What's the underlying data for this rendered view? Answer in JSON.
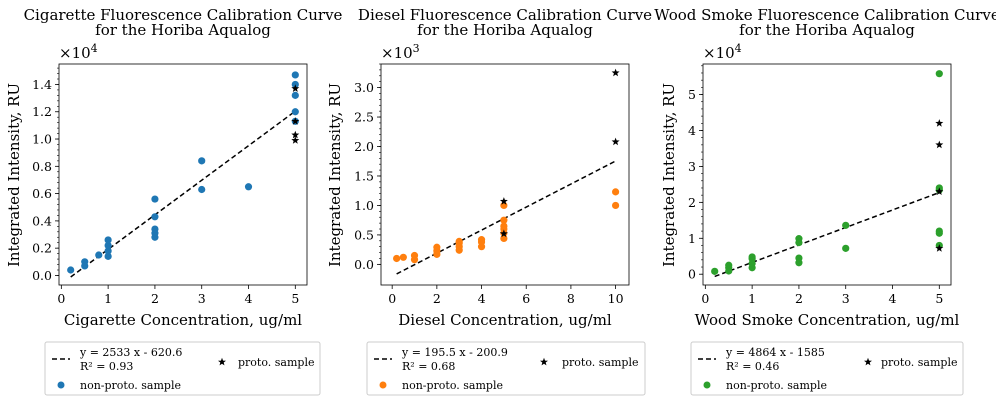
{
  "chart_data": [
    {
      "type": "scatter",
      "title": [
        "Cigarette Fluorescence Calibration Curve",
        "for the Horiba Aqualog"
      ],
      "xlabel": "Cigarette Concentration, ug/ml",
      "ylabel": "Integrated Intensity, RU",
      "y_multiplier": "×10^4",
      "y_scale": 10000,
      "xlim": [
        -0.05,
        5.25
      ],
      "ylim": [
        -700,
        15500
      ],
      "xticks": [
        0,
        1,
        2,
        3,
        4,
        5
      ],
      "yticks": [
        0,
        2000,
        4000,
        6000,
        8000,
        10000,
        12000,
        14000
      ],
      "ytick_labels": [
        "0.0",
        "0.2",
        "0.4",
        "0.6",
        "0.8",
        "1.0",
        "1.2",
        "1.4"
      ],
      "fit": {
        "slope": 2533,
        "intercept": -620.6,
        "x_range": [
          0.2,
          5
        ]
      },
      "colors": {
        "nonproto": "#1f77b4",
        "proto": "#000000",
        "fit": "#000000"
      },
      "series": [
        {
          "name": "non-proto. sample",
          "marker": "circle",
          "points": [
            [
              0.2,
              400
            ],
            [
              0.5,
              700
            ],
            [
              0.5,
              1000
            ],
            [
              0.8,
              1500
            ],
            [
              1,
              1400
            ],
            [
              1,
              1800
            ],
            [
              1,
              2200
            ],
            [
              1,
              2600
            ],
            [
              2,
              2800
            ],
            [
              2,
              3100
            ],
            [
              2,
              3400
            ],
            [
              2,
              4300
            ],
            [
              2,
              5600
            ],
            [
              3,
              6300
            ],
            [
              3,
              8400
            ],
            [
              4,
              6500
            ],
            [
              5,
              11300
            ],
            [
              5,
              12000
            ],
            [
              5,
              13200
            ],
            [
              5,
              14000
            ],
            [
              5,
              14700
            ]
          ]
        },
        {
          "name": "proto. sample",
          "marker": "star",
          "points": [
            [
              5,
              13700
            ],
            [
              5,
              11300
            ],
            [
              5,
              10300
            ],
            [
              5,
              9900
            ]
          ]
        }
      ],
      "legend": {
        "fit_label": [
          "y =  2533 x - 620.6",
          "R² = 0.93"
        ],
        "nonproto_label": "non-proto. sample",
        "proto_label": "proto. sample",
        "placement": "below"
      }
    },
    {
      "type": "scatter",
      "title": [
        "Diesel Fluorescence Calibration Curve",
        "for the Horiba Aqualog"
      ],
      "xlabel": "Diesel Concentration, ug/ml",
      "ylabel": "Integrated Intensity, RU",
      "y_multiplier": "×10^3",
      "y_scale": 1000,
      "xlim": [
        -0.5,
        10.6
      ],
      "ylim": [
        -350,
        3400
      ],
      "xticks": [
        0,
        2,
        4,
        6,
        8,
        10
      ],
      "yticks": [
        0,
        500,
        1000,
        1500,
        2000,
        2500,
        3000
      ],
      "ytick_labels": [
        "0.0",
        "0.5",
        "1.0",
        "1.5",
        "2.0",
        "2.5",
        "3.0"
      ],
      "fit": {
        "slope": 195.5,
        "intercept": -200.9,
        "x_range": [
          0.2,
          10
        ]
      },
      "colors": {
        "nonproto": "#ff7f0e",
        "proto": "#000000",
        "fit": "#000000"
      },
      "series": [
        {
          "name": "non-proto. sample",
          "marker": "circle",
          "points": [
            [
              0.2,
              100
            ],
            [
              0.5,
              120
            ],
            [
              1,
              80
            ],
            [
              1,
              150
            ],
            [
              2,
              170
            ],
            [
              2,
              230
            ],
            [
              2,
              290
            ],
            [
              3,
              240
            ],
            [
              3,
              300
            ],
            [
              3,
              360
            ],
            [
              3,
              390
            ],
            [
              4,
              300
            ],
            [
              4,
              380
            ],
            [
              4,
              420
            ],
            [
              5,
              440
            ],
            [
              5,
              530
            ],
            [
              5,
              600
            ],
            [
              5,
              650
            ],
            [
              5,
              750
            ],
            [
              5,
              1000
            ],
            [
              10,
              1000
            ],
            [
              10,
              1230
            ]
          ]
        },
        {
          "name": "proto. sample",
          "marker": "star",
          "points": [
            [
              5,
              1070
            ],
            [
              5,
              520
            ],
            [
              10,
              2080
            ],
            [
              10,
              3250
            ]
          ]
        }
      ],
      "legend": {
        "fit_label": [
          "y =  195.5 x - 200.9",
          "R² = 0.68"
        ],
        "nonproto_label": "non-proto. sample",
        "proto_label": "proto. sample",
        "placement": "below"
      }
    },
    {
      "type": "scatter",
      "title": [
        "Wood Smoke Fluorescence Calibration Curve",
        "for the Horiba Aqualog"
      ],
      "xlabel": "Wood Smoke Concentration, ug/ml",
      "ylabel": "Integrated Intensity, RU",
      "y_multiplier": "×10^4",
      "y_scale": 10000,
      "xlim": [
        -0.05,
        5.25
      ],
      "ylim": [
        -3000,
        58500
      ],
      "xticks": [
        0,
        1,
        2,
        3,
        4,
        5
      ],
      "yticks": [
        0,
        10000,
        20000,
        30000,
        40000,
        50000
      ],
      "ytick_labels": [
        "0",
        "1",
        "2",
        "3",
        "4",
        "5"
      ],
      "fit": {
        "slope": 4864,
        "intercept": -1585,
        "x_range": [
          0.2,
          5
        ]
      },
      "colors": {
        "nonproto": "#2ca02c",
        "proto": "#000000",
        "fit": "#000000"
      },
      "series": [
        {
          "name": "non-proto. sample",
          "marker": "circle",
          "points": [
            [
              0.2,
              800
            ],
            [
              0.5,
              900
            ],
            [
              0.5,
              1800
            ],
            [
              0.5,
              2500
            ],
            [
              1,
              1800
            ],
            [
              1,
              3000
            ],
            [
              1,
              4300
            ],
            [
              1,
              4800
            ],
            [
              2,
              3200
            ],
            [
              2,
              4500
            ],
            [
              2,
              8800
            ],
            [
              2,
              9900
            ],
            [
              3,
              7200
            ],
            [
              3,
              13600
            ],
            [
              5,
              8000
            ],
            [
              5,
              11400
            ],
            [
              5,
              12000
            ],
            [
              5,
              23400
            ],
            [
              5,
              24000
            ],
            [
              5,
              55800
            ]
          ]
        },
        {
          "name": "proto. sample",
          "marker": "star",
          "points": [
            [
              5,
              42000
            ],
            [
              5,
              36000
            ],
            [
              5,
              23000
            ],
            [
              5,
              7200
            ]
          ]
        }
      ],
      "legend": {
        "fit_label": [
          "y =  4864 x - 1585",
          "R² = 0.46"
        ],
        "nonproto_label": "non-proto. sample",
        "proto_label": "proto. sample",
        "placement": "below"
      }
    }
  ]
}
